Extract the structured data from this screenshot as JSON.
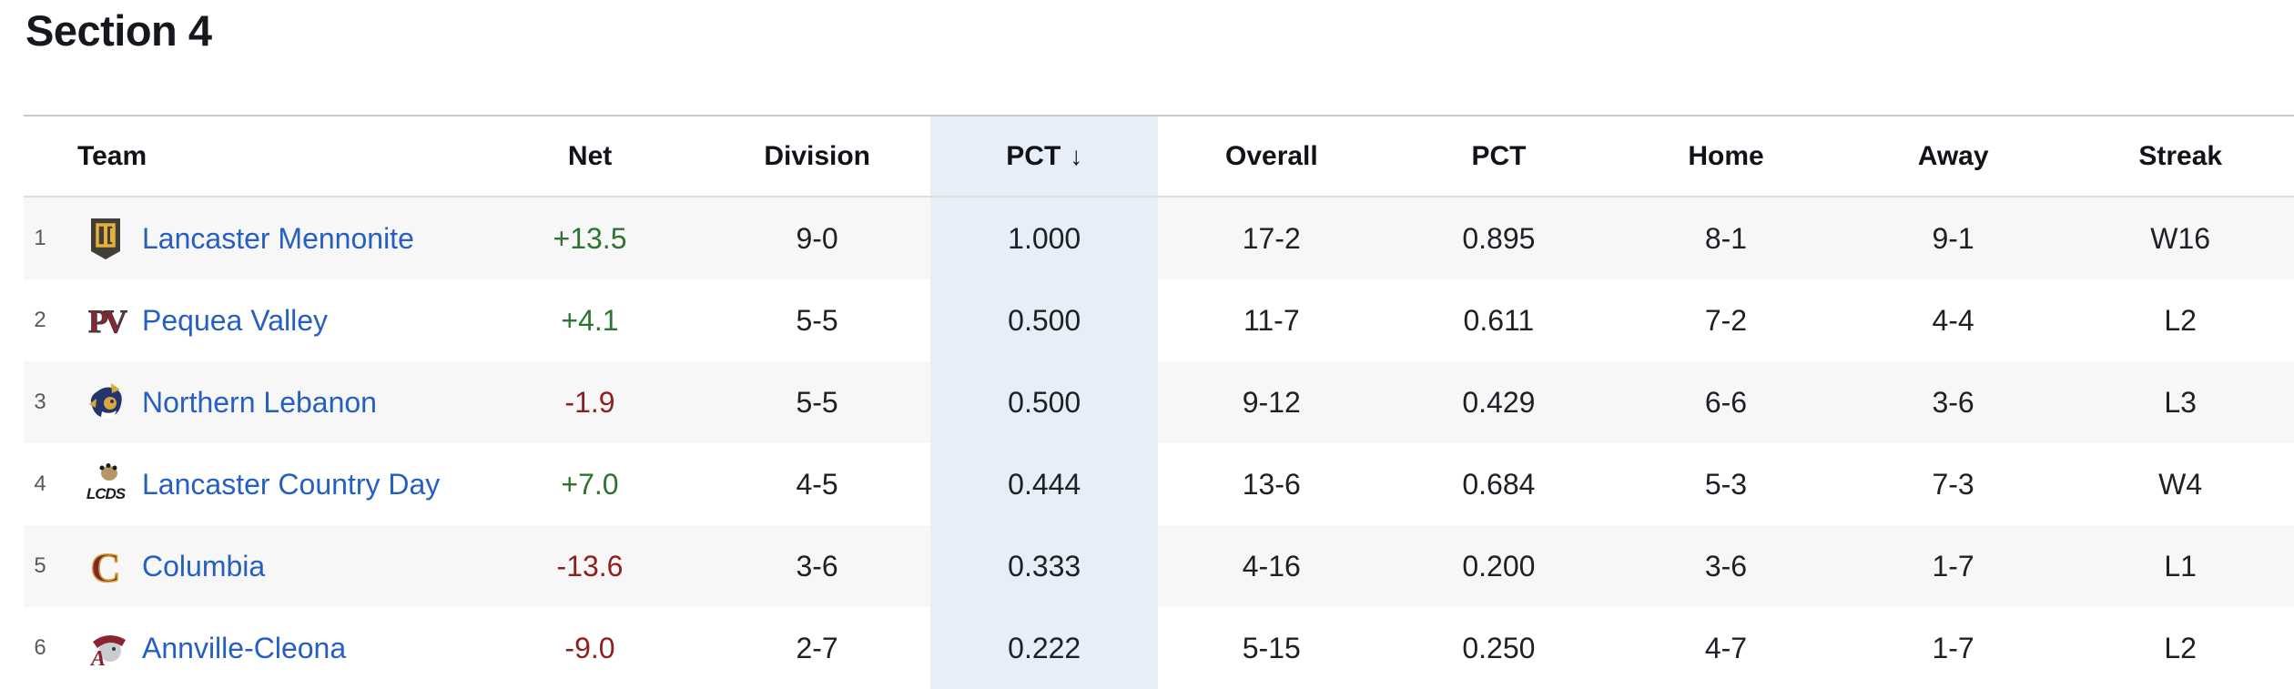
{
  "page": {
    "title": "Section 4"
  },
  "colors": {
    "link_blue": "#255fc4",
    "net_positive": "#2d7332",
    "net_negative": "#8e1f1f",
    "sorted_column_highlight": "#e8eef7",
    "row_stripe": "#f7f7f7",
    "header_text": "#101318",
    "cell_text": "#1d2126",
    "rank_text": "#565b62"
  },
  "table": {
    "sort_indicator": "↓",
    "sorted_column": "pct",
    "columns": [
      {
        "key": "team",
        "label": "Team",
        "sorted": false
      },
      {
        "key": "net",
        "label": "Net",
        "sorted": false
      },
      {
        "key": "division",
        "label": "Division",
        "sorted": false
      },
      {
        "key": "pct",
        "label": "PCT",
        "sorted": true
      },
      {
        "key": "overall",
        "label": "Overall",
        "sorted": false
      },
      {
        "key": "overall_pct",
        "label": "PCT",
        "sorted": false
      },
      {
        "key": "home",
        "label": "Home",
        "sorted": false
      },
      {
        "key": "away",
        "label": "Away",
        "sorted": false
      },
      {
        "key": "streak",
        "label": "Streak",
        "sorted": false
      }
    ],
    "rows": [
      {
        "rank": "1",
        "team": "Lancaster Mennonite",
        "logo": {
          "type": "shield-monogram",
          "primary": "#423e37",
          "secondary": "#e2b13c",
          "text": ""
        },
        "net": "+13.5",
        "division": "9-0",
        "pct": "1.000",
        "overall": "17-2",
        "overall_pct": "0.895",
        "home": "8-1",
        "away": "9-1",
        "streak": "W16"
      },
      {
        "rank": "2",
        "team": "Pequea Valley",
        "logo": {
          "type": "letters",
          "primary": "#8c2433",
          "secondary": "#3a3a3a",
          "text": "PV"
        },
        "net": "+4.1",
        "division": "5-5",
        "pct": "0.500",
        "overall": "11-7",
        "overall_pct": "0.611",
        "home": "7-2",
        "away": "4-4",
        "streak": "L2"
      },
      {
        "rank": "3",
        "team": "Northern Lebanon",
        "logo": {
          "type": "viking",
          "primary": "#24356e",
          "secondary": "#d9a83c",
          "text": ""
        },
        "net": "-1.9",
        "division": "5-5",
        "pct": "0.500",
        "overall": "9-12",
        "overall_pct": "0.429",
        "home": "6-6",
        "away": "3-6",
        "streak": "L3"
      },
      {
        "rank": "4",
        "team": "Lancaster Country Day",
        "logo": {
          "type": "paw-letters",
          "primary": "#1b1b1b",
          "secondary": "#b49563",
          "text": "LCDS"
        },
        "net": "+7.0",
        "division": "4-5",
        "pct": "0.444",
        "overall": "13-6",
        "overall_pct": "0.684",
        "home": "5-3",
        "away": "7-3",
        "streak": "W4"
      },
      {
        "rank": "5",
        "team": "Columbia",
        "logo": {
          "type": "block-letter",
          "primary": "#7e2733",
          "secondary": "#d9a83c",
          "text": "C"
        },
        "net": "-13.6",
        "division": "3-6",
        "pct": "0.333",
        "overall": "4-16",
        "overall_pct": "0.200",
        "home": "3-6",
        "away": "1-7",
        "streak": "L1"
      },
      {
        "rank": "6",
        "team": "Annville-Cleona",
        "logo": {
          "type": "dutchman",
          "primary": "#8c2332",
          "secondary": "#c9ccd1",
          "text": "A"
        },
        "net": "-9.0",
        "division": "2-7",
        "pct": "0.222",
        "overall": "5-15",
        "overall_pct": "0.250",
        "home": "4-7",
        "away": "1-7",
        "streak": "L2"
      }
    ]
  }
}
